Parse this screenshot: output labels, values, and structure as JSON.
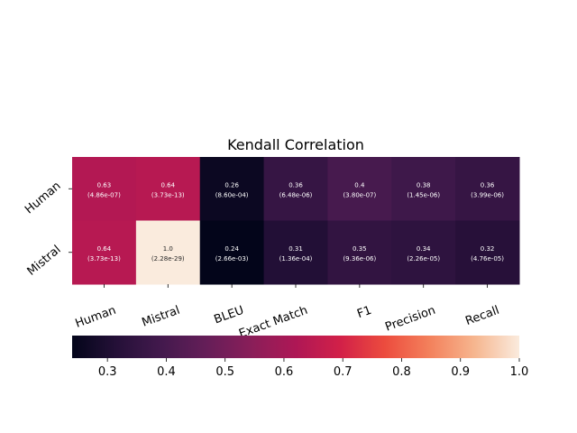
{
  "chart_data": {
    "type": "heatmap",
    "title": "Kendall Correlation",
    "rows": [
      "Human",
      "Mistral"
    ],
    "columns": [
      "Human",
      "Mistral",
      "BLEU",
      "Exact Match",
      "F1",
      "Precision",
      "Recall"
    ],
    "values": [
      [
        0.63,
        0.64,
        0.26,
        0.36,
        0.4,
        0.38,
        0.36
      ],
      [
        0.64,
        1.0,
        0.24,
        0.31,
        0.35,
        0.34,
        0.32
      ]
    ],
    "cell_labels": [
      [
        "0.63",
        "0.64",
        "0.26",
        "0.36",
        "0.4",
        "0.38",
        "0.36"
      ],
      [
        "0.64",
        "1.0",
        "0.24",
        "0.31",
        "0.35",
        "0.34",
        "0.32"
      ]
    ],
    "p_values": [
      [
        "(4.86e-07)",
        "(3.73e-13)",
        "(8.60e-04)",
        "(6.48e-06)",
        "(3.80e-07)",
        "(1.45e-06)",
        "(3.99e-06)"
      ],
      [
        "(3.73e-13)",
        "(2.28e-29)",
        "(2.66e-03)",
        "(1.36e-04)",
        "(9.36e-06)",
        "(2.26e-05)",
        "(4.76e-05)"
      ]
    ],
    "colorbar": {
      "range": [
        0.24,
        1.0
      ],
      "ticks": [
        "0.3",
        "0.4",
        "0.5",
        "0.6",
        "0.7",
        "0.8",
        "0.9",
        "1.0"
      ],
      "tick_values": [
        0.3,
        0.4,
        0.5,
        0.6,
        0.7,
        0.8,
        0.9,
        1.0
      ],
      "placement": "bottom",
      "colormap": "rocket"
    }
  }
}
